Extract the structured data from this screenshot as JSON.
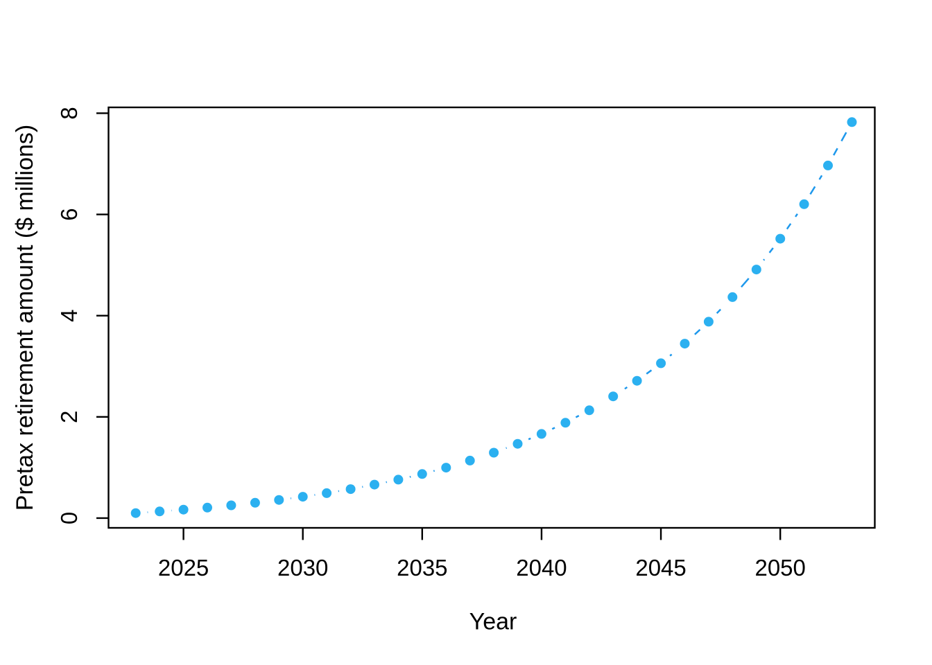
{
  "chart_data": {
    "type": "line",
    "title": "",
    "xlabel": "Year",
    "ylabel": "Pretax retirement amount ($ millions)",
    "x": [
      2023,
      2024,
      2025,
      2026,
      2027,
      2028,
      2029,
      2030,
      2031,
      2032,
      2033,
      2034,
      2035,
      2036,
      2037,
      2038,
      2039,
      2040,
      2041,
      2042,
      2043,
      2044,
      2045,
      2046,
      2047,
      2048,
      2049,
      2050,
      2051,
      2052,
      2053
    ],
    "series": [
      {
        "name": "pretax-retirement-amount",
        "values": [
          0.1,
          0.132,
          0.168,
          0.208,
          0.253,
          0.303,
          0.36,
          0.423,
          0.494,
          0.573,
          0.662,
          0.761,
          0.872,
          0.997,
          1.137,
          1.293,
          1.468,
          1.664,
          1.884,
          2.13,
          2.406,
          2.714,
          3.06,
          3.447,
          3.881,
          4.367,
          4.911,
          5.52,
          6.202,
          6.967,
          7.823
        ]
      }
    ],
    "xticks": [
      2025,
      2030,
      2035,
      2040,
      2045,
      2050
    ],
    "yticks": [
      0,
      2,
      4,
      6,
      8
    ],
    "xlim": [
      2021.86,
      2053.96
    ],
    "ylim": [
      -0.192,
      8.115
    ],
    "grid": false,
    "legend": null,
    "marker": "filled-circle",
    "line_style": "dashed",
    "colors": {
      "point": "#2BB0F0",
      "line": "#1E98EC",
      "axis": "#000000",
      "background": "#FFFFFF"
    }
  }
}
